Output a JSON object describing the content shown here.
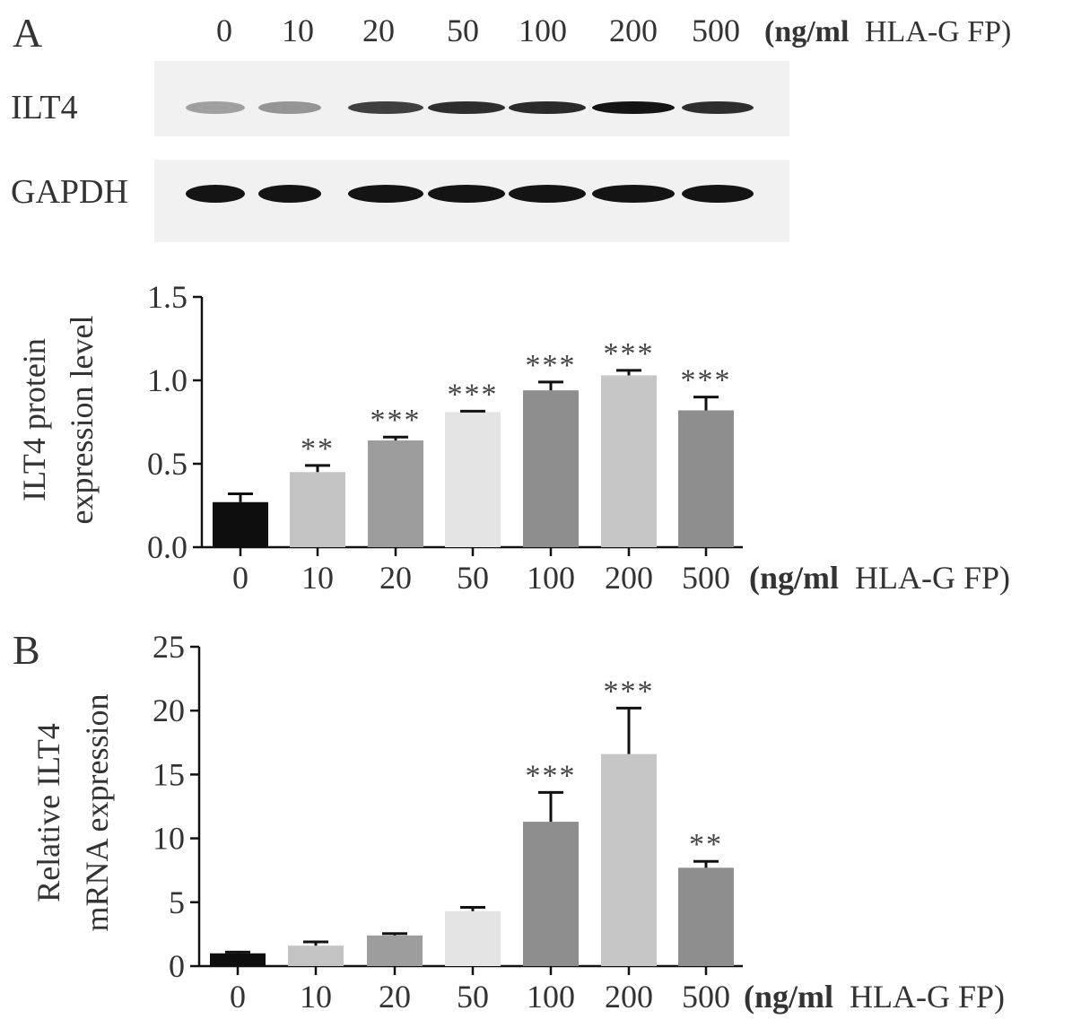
{
  "panel_a": {
    "label": "A",
    "lanes": [
      "0",
      "10",
      "20",
      "50",
      "100",
      "200",
      "500"
    ],
    "unit_bold": "(ng/ml",
    "unit_rest": "HLA-G FP)",
    "blots": [
      {
        "name": "ILT4",
        "intensity": [
          0.35,
          0.4,
          0.8,
          0.88,
          0.9,
          1.0,
          0.88
        ]
      },
      {
        "name": "GAPDH",
        "intensity": [
          1.0,
          1.0,
          1.0,
          1.0,
          1.0,
          1.0,
          1.0
        ]
      }
    ]
  },
  "panel_b": {
    "label": "B"
  },
  "chart_data": [
    {
      "type": "bar",
      "categories": [
        "0",
        "10",
        "20",
        "50",
        "100",
        "200",
        "500"
      ],
      "values": [
        0.27,
        0.45,
        0.64,
        0.81,
        0.94,
        1.03,
        0.82
      ],
      "errors": [
        0.05,
        0.04,
        0.02,
        0.005,
        0.05,
        0.03,
        0.08
      ],
      "significance": [
        "",
        "**",
        "***",
        "***",
        "***",
        "***",
        "***"
      ],
      "colors": [
        "#0e0e0e",
        "#c3c3c3",
        "#9d9d9d",
        "#e4e4e4",
        "#8e8e8e",
        "#c6c6c6",
        "#8e8e8e"
      ],
      "ylim": [
        0,
        1.5
      ],
      "yticks": [
        "0.0",
        "0.5",
        "1.0",
        "1.5"
      ],
      "ylabel": [
        "ILT4 protein",
        "expression level"
      ],
      "xlabel_bold": "(ng/ml",
      "xlabel_rest": "HLA-G FP)"
    },
    {
      "type": "bar",
      "categories": [
        "0",
        "10",
        "20",
        "50",
        "100",
        "200",
        "500"
      ],
      "values": [
        1.0,
        1.6,
        2.4,
        4.3,
        11.3,
        16.6,
        7.7
      ],
      "errors": [
        0.1,
        0.3,
        0.15,
        0.3,
        2.3,
        3.6,
        0.5
      ],
      "significance": [
        "",
        "",
        "",
        "",
        "***",
        "***",
        "**"
      ],
      "colors": [
        "#0e0e0e",
        "#c3c3c3",
        "#9d9d9d",
        "#e4e4e4",
        "#8e8e8e",
        "#c6c6c6",
        "#8e8e8e"
      ],
      "ylim": [
        0,
        25
      ],
      "yticks": [
        "0",
        "5",
        "10",
        "15",
        "20",
        "25"
      ],
      "ylabel": [
        "Relative ILT4",
        "mRNA expression"
      ],
      "xlabel_bold": "(ng/ml",
      "xlabel_rest": "HLA-G FP)"
    }
  ]
}
